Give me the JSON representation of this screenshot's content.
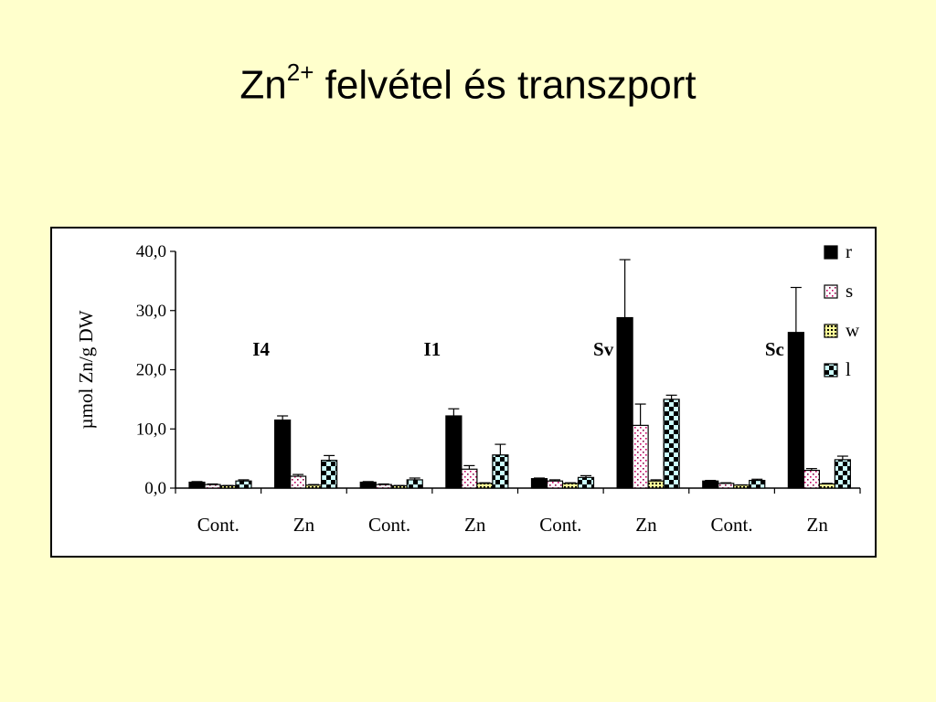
{
  "title": {
    "main": "Zn",
    "superscript": "2+",
    "rest": " felvétel és transzport"
  },
  "chart_data": {
    "type": "bar",
    "ylabel": "µmol Zn/g DW",
    "xlabel": "",
    "ylim": [
      0,
      40
    ],
    "yticks": [
      "0,0",
      "10,0",
      "20,0",
      "30,0",
      "40,0"
    ],
    "categories": [
      "Cont.",
      "Zn",
      "Cont.",
      "Zn",
      "Cont.",
      "Zn",
      "Cont.",
      "Zn"
    ],
    "groups": [
      "I4",
      "I1",
      "Sv",
      "Sc"
    ],
    "legend_position": "top-right",
    "series": [
      {
        "name": "r",
        "color": "#000000",
        "pattern": "solid",
        "values": [
          1.0,
          11.5,
          1.0,
          12.2,
          1.6,
          28.8,
          1.2,
          26.3
        ],
        "errors": [
          0.1,
          0.7,
          0.1,
          1.2,
          0.1,
          9.8,
          0.1,
          7.6
        ]
      },
      {
        "name": "s",
        "color": "#ffffff",
        "pattern": "dots",
        "values": [
          0.6,
          2.0,
          0.6,
          3.2,
          1.2,
          10.6,
          0.8,
          3.0
        ],
        "errors": [
          0.1,
          0.3,
          0.1,
          0.6,
          0.2,
          3.6,
          0.1,
          0.3
        ]
      },
      {
        "name": "w",
        "color": "#ffff99",
        "pattern": "tiny",
        "values": [
          0.4,
          0.5,
          0.4,
          0.8,
          0.8,
          1.2,
          0.5,
          0.7
        ],
        "errors": [
          0.05,
          0.1,
          0.05,
          0.1,
          0.1,
          0.2,
          0.05,
          0.1
        ]
      },
      {
        "name": "l",
        "color": "#ccffff",
        "pattern": "checker",
        "values": [
          1.2,
          4.7,
          1.4,
          5.6,
          1.8,
          15.0,
          1.3,
          4.8
        ],
        "errors": [
          0.2,
          0.8,
          0.3,
          1.8,
          0.3,
          0.7,
          0.2,
          0.6
        ]
      }
    ]
  }
}
